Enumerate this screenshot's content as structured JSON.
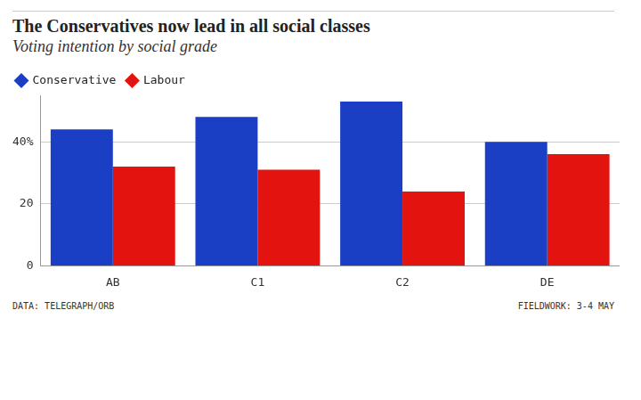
{
  "chart_data": {
    "type": "bar",
    "title": "The Conservatives now lead in all social classes",
    "subtitle": "Voting intention by social grade",
    "categories": [
      "AB",
      "C1",
      "C2",
      "DE"
    ],
    "series": [
      {
        "name": "Conservative",
        "color": "#1a3fc4",
        "values": [
          44,
          48,
          53,
          40
        ]
      },
      {
        "name": "Labour",
        "color": "#e3140f",
        "values": [
          32,
          31,
          24,
          36
        ]
      }
    ],
    "ylim": [
      0,
      55
    ],
    "yticks": [
      0,
      20,
      {
        "value": 40,
        "label": "40%"
      }
    ],
    "grid": true,
    "legend": "top-left",
    "source": "DATA: TELEGRAPH/ORB",
    "note": "FIELDWORK: 3-4 MAY"
  }
}
